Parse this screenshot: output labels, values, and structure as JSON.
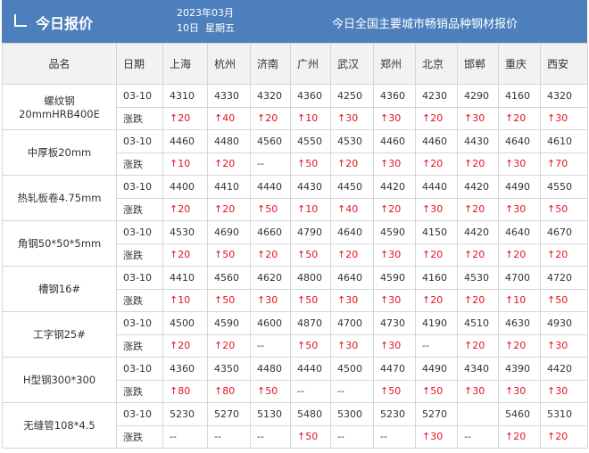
{
  "header": {
    "title": "今日报价",
    "date_line1": "2023年03月",
    "date_line2": "10日  星期五",
    "subtitle": "今日全国主要城市畅销品种钢材报价"
  },
  "table": {
    "columns": [
      "品名",
      "日期",
      "上海",
      "杭州",
      "济南",
      "广州",
      "武汉",
      "郑州",
      "北京",
      "邯郸",
      "重庆",
      "西安"
    ],
    "rows": [
      {
        "name": "螺纹钢\n20mmHRB400E",
        "date": "03-10",
        "prices": [
          "4310",
          "4330",
          "4320",
          "4360",
          "4250",
          "4360",
          "4230",
          "4290",
          "4160",
          "4320"
        ],
        "change_label": "涨跌",
        "changes": [
          "↑20",
          "↑40",
          "↑20",
          "↑10",
          "↑30",
          "↑30",
          "↑20",
          "↑30",
          "↑20",
          "↑30"
        ]
      },
      {
        "name": "中厚板20mm",
        "date": "03-10",
        "prices": [
          "4460",
          "4480",
          "4560",
          "4550",
          "4530",
          "4460",
          "4460",
          "4430",
          "4640",
          "4610"
        ],
        "change_label": "涨跌",
        "changes": [
          "↑10",
          "↑20",
          "--",
          "↑50",
          "↑20",
          "↑30",
          "↑20",
          "↑20",
          "↑30",
          "↑70"
        ]
      },
      {
        "name": "热轧板卷4.75mm",
        "date": "03-10",
        "prices": [
          "4400",
          "4410",
          "4440",
          "4430",
          "4450",
          "4420",
          "4440",
          "4420",
          "4490",
          "4550"
        ],
        "change_label": "涨跌",
        "changes": [
          "↑20",
          "↑20",
          "↑50",
          "↑10",
          "↑40",
          "↑20",
          "↑30",
          "↑20",
          "↑30",
          "↑50"
        ]
      },
      {
        "name": "角钢50*50*5mm",
        "date": "03-10",
        "prices": [
          "4530",
          "4690",
          "4660",
          "4790",
          "4640",
          "4590",
          "4150",
          "4420",
          "4640",
          "4670"
        ],
        "change_label": "涨跌",
        "changes": [
          "↑20",
          "↑50",
          "↑20",
          "↑50",
          "↑20",
          "↑30",
          "↑20",
          "↑20",
          "↑20",
          "↑20"
        ]
      },
      {
        "name": "槽钢16#",
        "date": "03-10",
        "prices": [
          "4410",
          "4560",
          "4620",
          "4800",
          "4640",
          "4590",
          "4160",
          "4530",
          "4700",
          "4720"
        ],
        "change_label": "涨跌",
        "changes": [
          "↑10",
          "↑50",
          "↑30",
          "↑50",
          "↑30",
          "↑30",
          "↑20",
          "↑20",
          "↑10",
          "↑50"
        ]
      },
      {
        "name": "工字钢25#",
        "date": "03-10",
        "prices": [
          "4500",
          "4590",
          "4600",
          "4870",
          "4700",
          "4730",
          "4190",
          "4510",
          "4630",
          "4930"
        ],
        "change_label": "涨跌",
        "changes": [
          "↑20",
          "↑20",
          "--",
          "↑50",
          "↑30",
          "↑30",
          "--",
          "↑20",
          "↑20",
          "↑30"
        ]
      },
      {
        "name": "H型钢300*300",
        "date": "03-10",
        "prices": [
          "4360",
          "4350",
          "4480",
          "4440",
          "4500",
          "4470",
          "4490",
          "4340",
          "4390",
          "4420"
        ],
        "change_label": "涨跌",
        "changes": [
          "↑80",
          "↑80",
          "↑50",
          "--",
          "--",
          "↑50",
          "↑50",
          "↑30",
          "↑30",
          "↑30"
        ]
      },
      {
        "name": "无缝管108*4.5",
        "date": "03-10",
        "prices": [
          "5230",
          "5270",
          "5130",
          "5480",
          "5300",
          "5230",
          "5270",
          null,
          "5460",
          "5310"
        ],
        "change_label": "涨跌",
        "changes": [
          "--",
          "--",
          "--",
          "↑50",
          "--",
          "--",
          "↑30",
          "--",
          "↑20",
          "↑20"
        ]
      }
    ]
  }
}
